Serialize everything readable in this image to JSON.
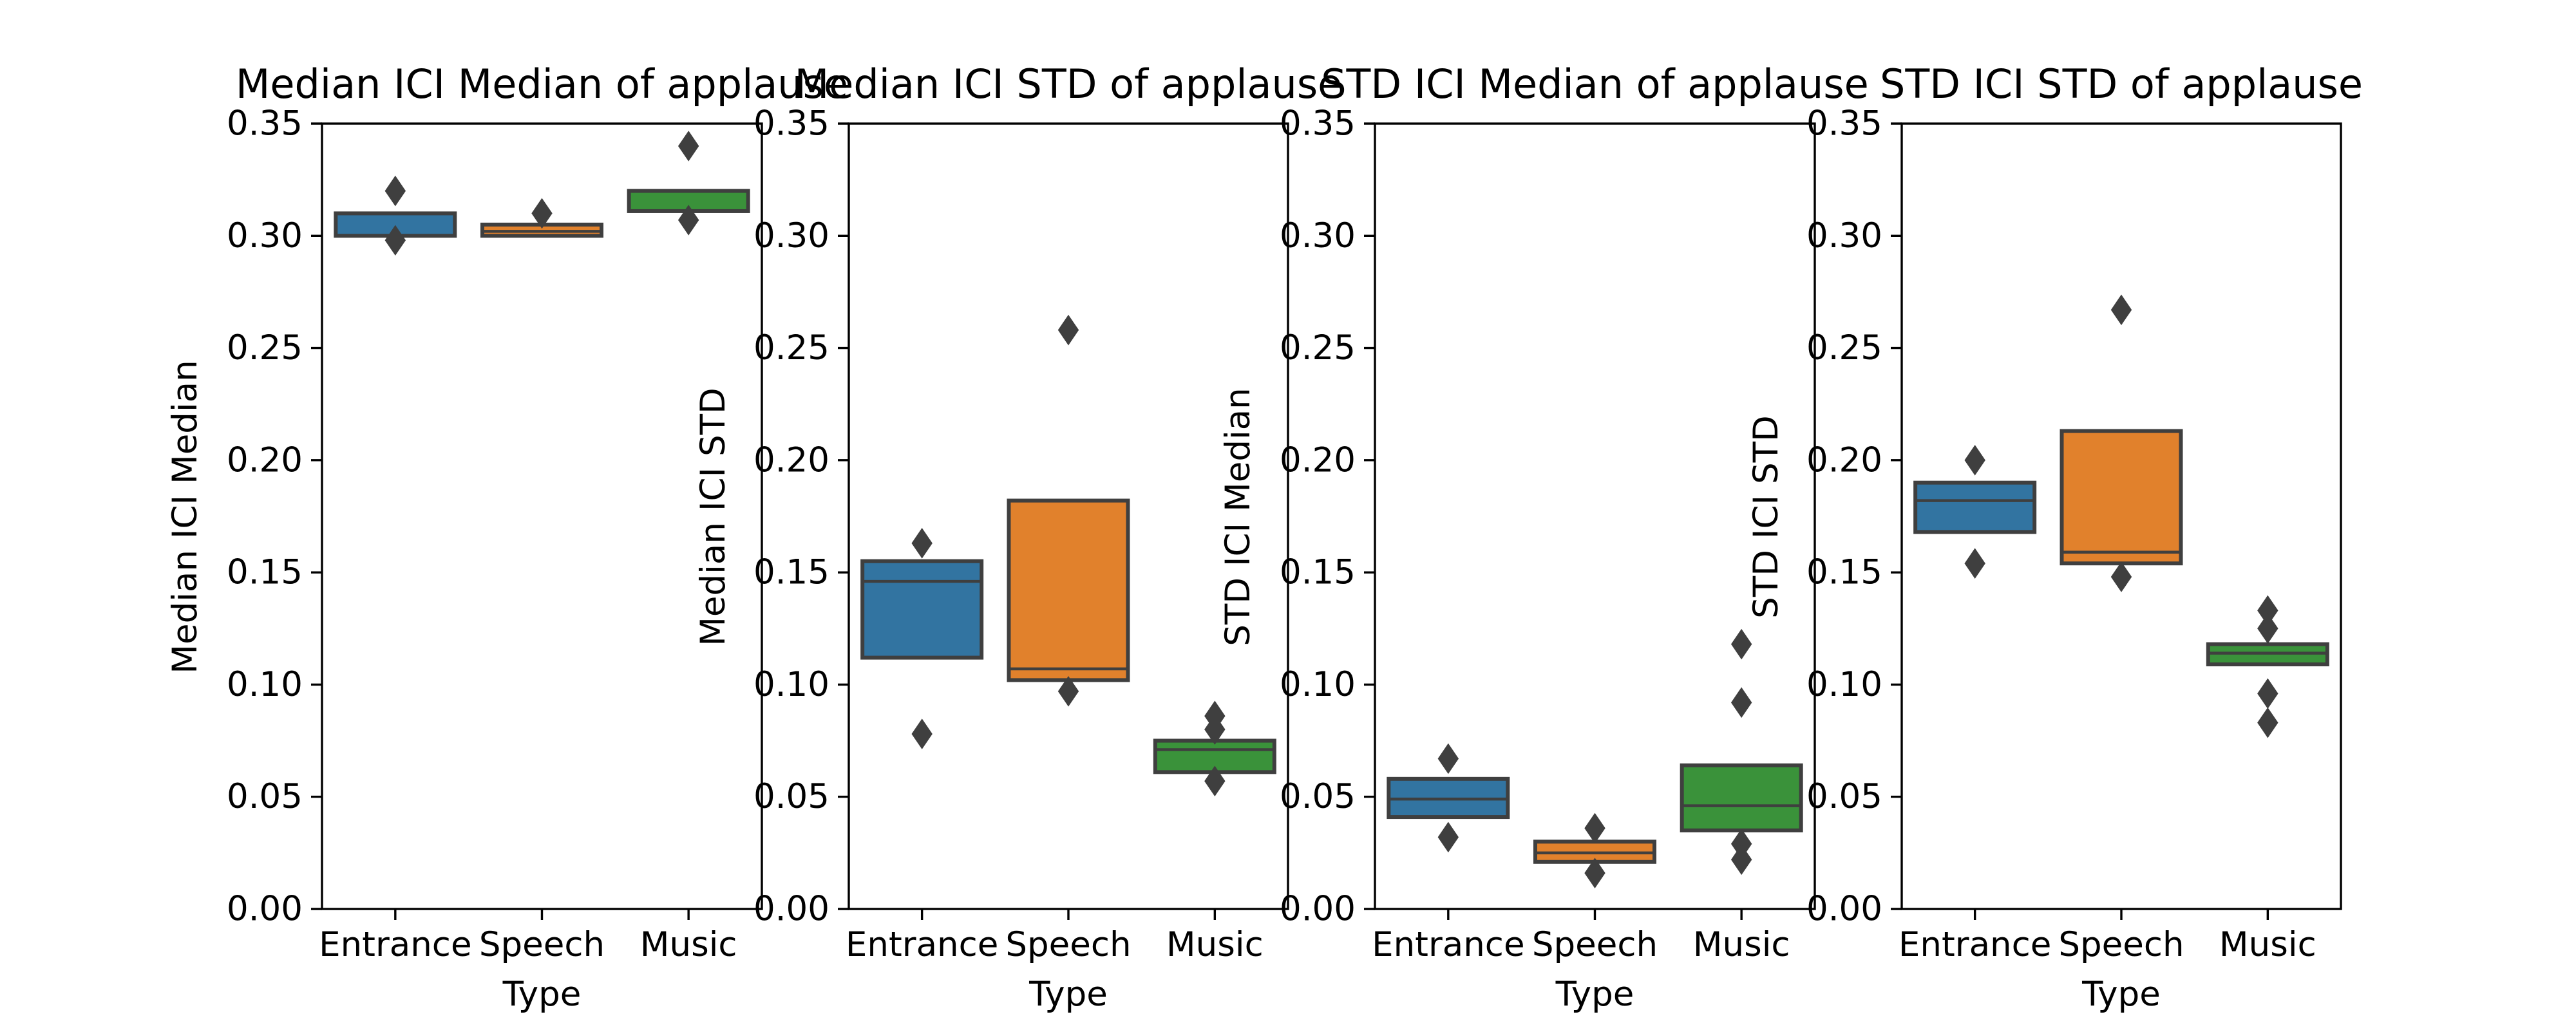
{
  "chart_data": [
    {
      "type": "boxen",
      "title": "Median ICI Median of applause",
      "xlabel": "Type",
      "ylabel": "Median ICI Median",
      "categories": [
        "Entrance",
        "Speech",
        "Music"
      ],
      "ylim": [
        0,
        0.35
      ],
      "yticks": [
        "0.00",
        "0.05",
        "0.10",
        "0.15",
        "0.20",
        "0.25",
        "0.30",
        "0.35"
      ],
      "boxes": [
        {
          "category": "Entrance",
          "low": 0.3,
          "high": 0.31,
          "median": 0.3,
          "outliers": [
            0.32,
            0.298
          ]
        },
        {
          "category": "Speech",
          "low": 0.3,
          "high": 0.305,
          "median": 0.302,
          "outliers": [
            0.31
          ]
        },
        {
          "category": "Music",
          "low": 0.311,
          "high": 0.32,
          "median": 0.311,
          "outliers": [
            0.34,
            0.307
          ]
        }
      ]
    },
    {
      "type": "boxen",
      "title": "Median ICI STD of applause",
      "xlabel": "Type",
      "ylabel": "Median ICI STD",
      "categories": [
        "Entrance",
        "Speech",
        "Music"
      ],
      "ylim": [
        0,
        0.35
      ],
      "yticks": [
        "0.00",
        "0.05",
        "0.10",
        "0.15",
        "0.20",
        "0.25",
        "0.30",
        "0.35"
      ],
      "boxes": [
        {
          "category": "Entrance",
          "low": 0.112,
          "high": 0.155,
          "median": 0.146,
          "outliers": [
            0.163,
            0.078
          ]
        },
        {
          "category": "Speech",
          "low": 0.102,
          "high": 0.182,
          "median": 0.107,
          "outliers": [
            0.258,
            0.097
          ]
        },
        {
          "category": "Music",
          "low": 0.061,
          "high": 0.075,
          "median": 0.071,
          "outliers": [
            0.086,
            0.08,
            0.057
          ]
        }
      ]
    },
    {
      "type": "boxen",
      "title": "STD ICI Median of applause",
      "xlabel": "Type",
      "ylabel": "STD ICI Median",
      "categories": [
        "Entrance",
        "Speech",
        "Music"
      ],
      "ylim": [
        0,
        0.35
      ],
      "yticks": [
        "0.00",
        "0.05",
        "0.10",
        "0.15",
        "0.20",
        "0.25",
        "0.30",
        "0.35"
      ],
      "boxes": [
        {
          "category": "Entrance",
          "low": 0.041,
          "high": 0.058,
          "median": 0.049,
          "outliers": [
            0.067,
            0.032
          ]
        },
        {
          "category": "Speech",
          "low": 0.021,
          "high": 0.03,
          "median": 0.025,
          "outliers": [
            0.036,
            0.016
          ]
        },
        {
          "category": "Music",
          "low": 0.035,
          "high": 0.064,
          "median": 0.046,
          "outliers": [
            0.118,
            0.092,
            0.029,
            0.022
          ]
        }
      ]
    },
    {
      "type": "boxen",
      "title": "STD ICI STD of applause",
      "xlabel": "Type",
      "ylabel": "STD ICI STD",
      "categories": [
        "Entrance",
        "Speech",
        "Music"
      ],
      "ylim": [
        0,
        0.35
      ],
      "yticks": [
        "0.00",
        "0.05",
        "0.10",
        "0.15",
        "0.20",
        "0.25",
        "0.30",
        "0.35"
      ],
      "boxes": [
        {
          "category": "Entrance",
          "low": 0.168,
          "high": 0.19,
          "median": 0.182,
          "outliers": [
            0.2,
            0.154
          ]
        },
        {
          "category": "Speech",
          "low": 0.154,
          "high": 0.213,
          "median": 0.159,
          "outliers": [
            0.267,
            0.148
          ]
        },
        {
          "category": "Music",
          "low": 0.109,
          "high": 0.118,
          "median": 0.114,
          "outliers": [
            0.133,
            0.125,
            0.096,
            0.083
          ]
        }
      ]
    }
  ],
  "colors": {
    "Entrance": "#3274a1",
    "Speech": "#e1812c",
    "Music": "#3a923a",
    "line": "#3f3f3f"
  }
}
